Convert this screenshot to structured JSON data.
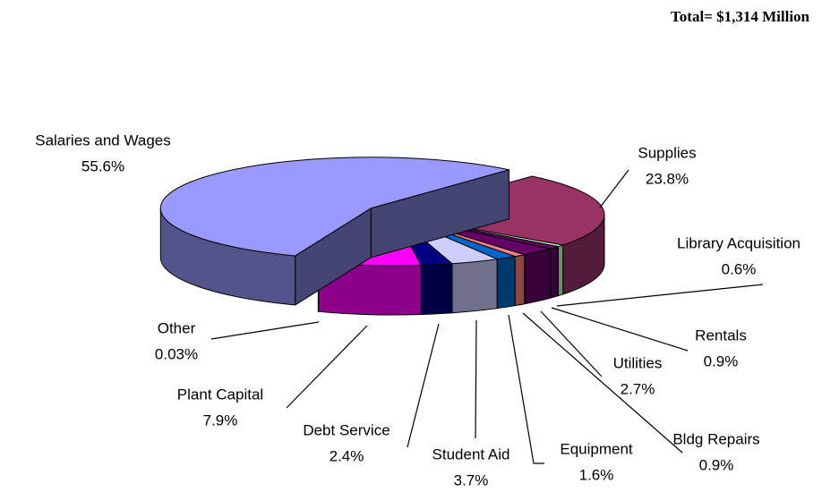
{
  "chart_data": {
    "type": "pie",
    "title": "Total= $1,314 Million",
    "categories": [
      "Supplies",
      "Library Acquisition",
      "Rentals",
      "Utilities",
      "Bldg Repairs",
      "Equipment",
      "Student Aid",
      "Debt Service",
      "Plant Capital",
      "Other",
      "Salaries and Wages"
    ],
    "values": [
      23.8,
      0.6,
      0.9,
      2.7,
      0.9,
      1.6,
      3.7,
      2.4,
      7.9,
      0.03,
      55.6
    ],
    "value_labels": [
      "23.8%",
      "0.6%",
      "0.9%",
      "2.7%",
      "0.9%",
      "1.6%",
      "3.7%",
      "2.4%",
      "7.9%",
      "0.03%",
      "55.6%"
    ],
    "colors": [
      "#993366",
      "#ccffcc",
      "#660066",
      "#660066",
      "#ff8080",
      "#0066cc",
      "#ccccff",
      "#000080",
      "#ff00ff",
      "#800080",
      "#9999ff"
    ]
  }
}
